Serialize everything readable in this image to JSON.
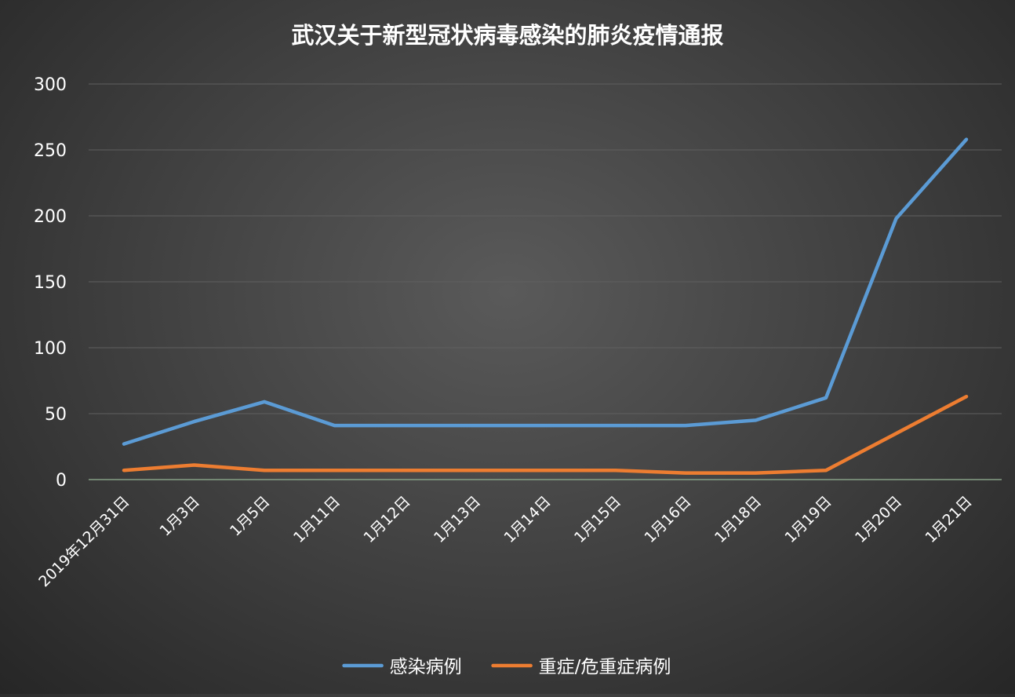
{
  "chart_data": {
    "type": "line",
    "title": "武汉关于新型冠状病毒感染的肺炎疫情通报",
    "categories": [
      "2019年12月31日",
      "1月3日",
      "1月5日",
      "1月11日",
      "1月12日",
      "1月13日",
      "1月14日",
      "1月15日",
      "1月16日",
      "1月18日",
      "1月19日",
      "1月20日",
      "1月21日"
    ],
    "series": [
      {
        "name": "感染病例",
        "color": "#5b9bd5",
        "values": [
          27,
          44,
          59,
          41,
          41,
          41,
          41,
          41,
          41,
          45,
          62,
          198,
          258
        ]
      },
      {
        "name": "重症/危重症病例",
        "color": "#ed7d31",
        "values": [
          7,
          11,
          7,
          7,
          7,
          7,
          7,
          7,
          5,
          5,
          7,
          35,
          63
        ]
      }
    ],
    "ylim": [
      0,
      300
    ],
    "yticks": [
      0,
      50,
      100,
      150,
      200,
      250,
      300
    ],
    "grid": true,
    "legend_position": "bottom"
  }
}
